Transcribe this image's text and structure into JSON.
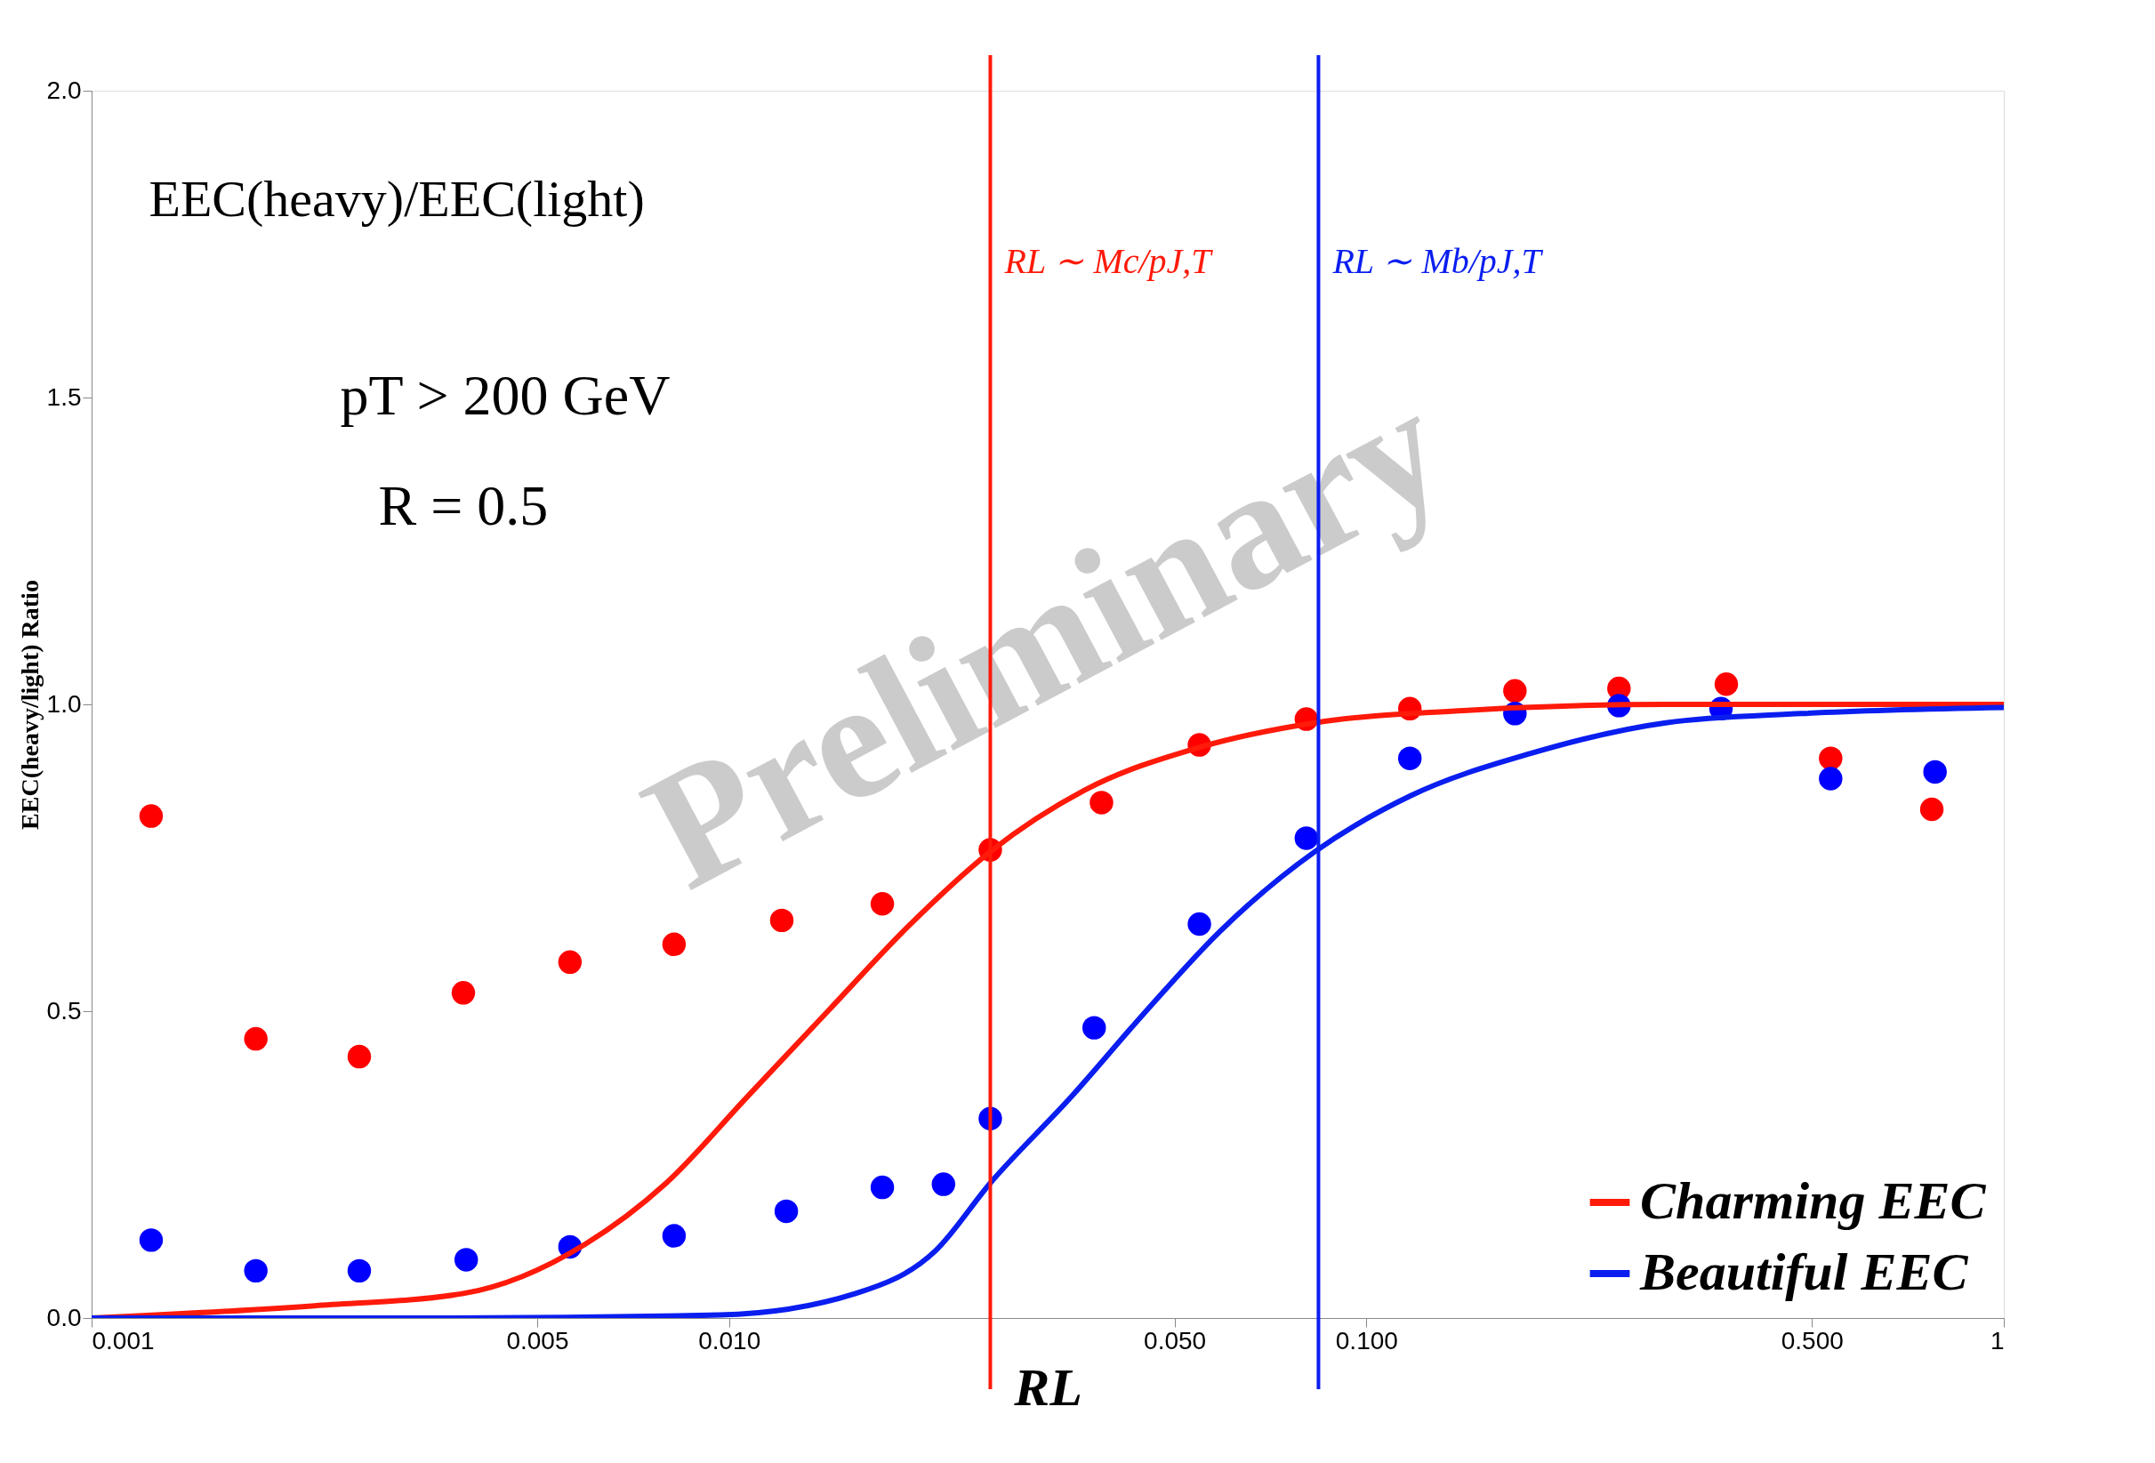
{
  "chart_data": {
    "type": "scatter",
    "xlabel": "RL",
    "ylabel": "EEC(heavy/light) Ratio",
    "log": "x",
    "xlim": [
      0.001,
      1
    ],
    "ylim": [
      0,
      2
    ],
    "xticks": [
      {
        "value": 0.001,
        "label": "0.001"
      },
      {
        "value": 0.005,
        "label": "0.005"
      },
      {
        "value": 0.01,
        "label": "0.010"
      },
      {
        "value": 0.05,
        "label": "0.050"
      },
      {
        "value": 0.1,
        "label": "0.100"
      },
      {
        "value": 0.5,
        "label": "0.500"
      },
      1
    ],
    "yticks": [
      {
        "value": 0,
        "label": "0.0"
      },
      {
        "value": 0.5,
        "label": "0.5"
      },
      {
        "value": 1,
        "label": "1.0"
      },
      {
        "value": 1.5,
        "label": "1.5"
      },
      {
        "value": 2,
        "label": "2.0"
      }
    ],
    "grid": false,
    "legend": "bottom right",
    "series": [
      {
        "marker": "circle",
        "color": "#ff0000",
        "x": [
          0.00124,
          0.00181,
          0.00263,
          0.00383,
          0.00563,
          0.0082,
          0.0121,
          0.0174,
          0.0257,
          0.0384,
          0.0547,
          0.0805,
          0.117,
          0.171,
          0.249,
          0.367,
          0.535,
          0.771
        ],
        "values": [
          0.818,
          0.455,
          0.426,
          0.53,
          0.58,
          0.609,
          0.648,
          0.675,
          0.763,
          0.84,
          0.934,
          0.976,
          0.993,
          1.022,
          1.026,
          1.033,
          0.912,
          0.829
        ]
      },
      {
        "marker": "circle",
        "color": "#0000ff",
        "x": [
          0.00124,
          0.00181,
          0.00263,
          0.00387,
          0.00563,
          0.0082,
          0.0123,
          0.0174,
          0.0217,
          0.0257,
          0.0374,
          0.0547,
          0.0805,
          0.117,
          0.171,
          0.249,
          0.36,
          0.535,
          0.78
        ],
        "values": [
          0.127,
          0.077,
          0.077,
          0.095,
          0.116,
          0.134,
          0.174,
          0.213,
          0.218,
          0.325,
          0.473,
          0.642,
          0.782,
          0.912,
          0.985,
          0.998,
          0.993,
          0.879,
          0.89
        ]
      },
      {
        "type": "line",
        "name": "Charming EEC",
        "marker": "none",
        "line_style": "solid",
        "color": "#ff1a0a",
        "x": [
          0.001,
          0.00224,
          0.00383,
          0.00594,
          0.00797,
          0.01067,
          0.01429,
          0.01918,
          0.0257,
          0.0361,
          0.0547,
          0.083,
          0.142,
          0.295,
          1
        ],
        "values": [
          0,
          0.02,
          0.04,
          0.12,
          0.22,
          0.36,
          0.5,
          0.64,
          0.76,
          0.86,
          0.93,
          0.97,
          0.99,
          1.0,
          1.0
        ]
      },
      {
        "type": "line",
        "name": "Beautiful EEC",
        "marker": "none",
        "line_style": "solid",
        "color": "#0a1ef0",
        "x": [
          0.001,
          0.00365,
          0.00968,
          0.0158,
          0.0211,
          0.0257,
          0.0344,
          0.0451,
          0.0589,
          0.083,
          0.1167,
          0.181,
          0.295,
          0.481,
          1
        ],
        "values": [
          0,
          0,
          0.005,
          0.04,
          0.11,
          0.22,
          0.36,
          0.5,
          0.63,
          0.76,
          0.85,
          0.92,
          0.97,
          0.985,
          0.995
        ]
      }
    ],
    "ref_lines": [
      {
        "axis": "x",
        "value": 0.0257,
        "color": "#ff1a0a",
        "label": "RL ∼ Mc/pJ,T"
      },
      {
        "axis": "x",
        "value": 0.0841,
        "color": "#0a1ef0",
        "label": "RL ∼ Mb/pJ,T"
      }
    ],
    "annotations": [
      "EEC(heavy)/EEC(light)",
      "pT > 200 GeV",
      "R = 0.5",
      "Preliminary"
    ]
  }
}
